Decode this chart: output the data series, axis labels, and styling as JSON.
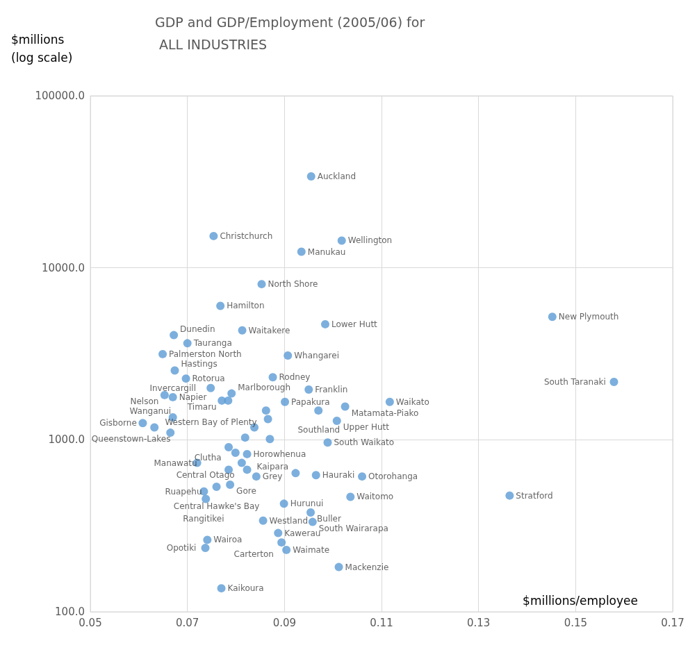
{
  "chart_data": {
    "type": "scatter",
    "title": "GDP and GDP/Employment (2005/06) for ALL INDUSTRIES",
    "xlabel": "$millions/employee",
    "ylabel": "$millions (log scale)",
    "log": "y",
    "grid": true,
    "marker": "circle",
    "xlim": [
      0.05,
      0.17
    ],
    "xticks": [
      0.05,
      0.07,
      0.09,
      0.11,
      0.13,
      0.15,
      0.17
    ],
    "ylim": [
      100,
      100000
    ],
    "yticks": [
      {
        "value": 100,
        "label": "100.0"
      },
      {
        "value": 1000,
        "label": "1000.0"
      },
      {
        "value": 10000,
        "label": "10000.0"
      },
      {
        "value": 100000,
        "label": "100000.0"
      }
    ],
    "series": [
      {
        "color": "#5b9bd5",
        "x": [
          0.0955,
          0.0754,
          0.1018,
          0.0935,
          0.0853,
          0.0768,
          0.1452,
          0.0984,
          0.0813,
          0.0672,
          0.07,
          0.0649,
          0.0907,
          0.0674,
          0.0876,
          0.0697,
          0.1579,
          0.0748,
          0.095,
          0.0653,
          0.067,
          0.0791,
          0.0771,
          0.0784,
          0.1117,
          0.0901,
          0.1025,
          0.097,
          0.0862,
          0.067,
          0.0866,
          0.1008,
          0.0608,
          0.0632,
          0.0838,
          0.0665,
          0.0819,
          0.087,
          0.0989,
          0.0785,
          0.0799,
          0.0823,
          0.072,
          0.0812,
          0.0785,
          0.0823,
          0.0923,
          0.0842,
          0.0965,
          0.106,
          0.0788,
          0.076,
          0.0734,
          0.1036,
          0.1364,
          0.0738,
          0.0899,
          0.0954,
          0.0856,
          0.0958,
          0.0887,
          0.0741,
          0.0894,
          0.0737,
          0.0904,
          0.1012,
          0.077
        ],
        "values": [
          34000,
          15300,
          14400,
          12400,
          8040,
          6010,
          5190,
          4700,
          4330,
          4060,
          3640,
          3150,
          3090,
          2530,
          2310,
          2270,
          2170,
          2000,
          1960,
          1820,
          1770,
          1860,
          1690,
          1690,
          1660,
          1660,
          1560,
          1480,
          1480,
          1350,
          1320,
          1290,
          1250,
          1180,
          1180,
          1100,
          1030,
          1010,
          964,
          906,
          841,
          826,
          734,
          734,
          670,
          670,
          640,
          612,
          623,
          612,
          548,
          533,
          501,
          466,
          474,
          453,
          425,
          378,
          339,
          333,
          287,
          262,
          253,
          235,
          229,
          182,
          137
        ],
        "value_labels": [
          "Auckland",
          "Christchurch",
          "Wellington",
          "Manukau",
          "North Shore",
          "Hamilton",
          "New Plymouth",
          "Lower Hutt",
          "Waitakere",
          "Dunedin",
          "Tauranga",
          "Palmerston North",
          "Whangarei",
          "Hastings",
          "Rodney",
          "Rotorua",
          "South Taranaki",
          "Invercargill",
          "Franklin",
          "Nelson",
          "Napier",
          "Marlborough",
          "Timaru",
          null,
          "Waikato",
          "Papakura",
          "Matamata-Piako",
          "Southland",
          "Western Bay of Plenty",
          "Wanganui",
          null,
          "Upper Hutt",
          "Gisborne",
          null,
          null,
          "Queenstown-Lakes",
          null,
          null,
          "South Waikato",
          null,
          null,
          "Horowhenua",
          "Manawatu",
          "Central Otago",
          "Clutha",
          null,
          "Kaipara",
          "Grey",
          "Hauraki",
          "Otorohanga",
          "Gore",
          "Central Hawke's Bay",
          "Ruapehu",
          "Waitomo",
          "Stratford",
          "Rangitikei",
          "Hurunui",
          "Buller",
          "Westland",
          "South Wairarapa",
          "Kawerau",
          "Wairoa",
          "Carterton",
          "Opotiki",
          "Waimate",
          "Mackenzie",
          "Kaikoura"
        ]
      }
    ]
  }
}
